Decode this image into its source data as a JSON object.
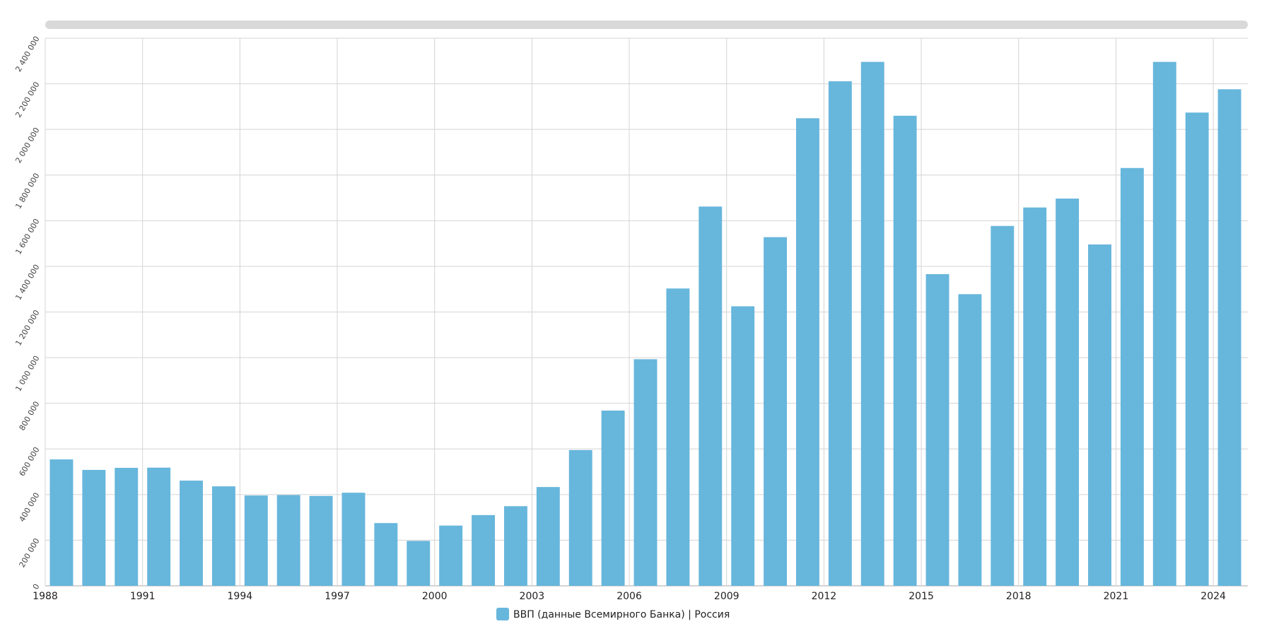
{
  "chart_data": {
    "type": "bar",
    "title": "",
    "xlabel": "",
    "ylabel": "",
    "categories": [
      1988,
      1989,
      1990,
      1991,
      1992,
      1993,
      1994,
      1995,
      1996,
      1997,
      1998,
      1999,
      2000,
      2001,
      2002,
      2003,
      2004,
      2005,
      2006,
      2007,
      2008,
      2009,
      2010,
      2011,
      2012,
      2013,
      2014,
      2015,
      2016,
      2017,
      2018,
      2019,
      2020,
      2021,
      2022,
      2023,
      2024
    ],
    "series": [
      {
        "name": "ВВП (данные Всемирного Банка) | Россия",
        "color": "#67b6dc",
        "values": [
          554000,
          508000,
          517000,
          518000,
          461000,
          436000,
          396000,
          398000,
          394000,
          408000,
          275000,
          197000,
          264000,
          310000,
          349000,
          433000,
          595000,
          768000,
          993000,
          1303000,
          1662000,
          1225000,
          1528000,
          2049000,
          2211000,
          2296000,
          2060000,
          1366000,
          1278000,
          1577000,
          1658000,
          1697000,
          1496000,
          1831000,
          2296000,
          2074000,
          2176000
        ]
      }
    ],
    "ylim": [
      0,
      2400000
    ],
    "yticks": [
      0,
      200000,
      400000,
      600000,
      800000,
      1000000,
      1200000,
      1400000,
      1600000,
      1800000,
      2000000,
      2200000,
      2400000
    ],
    "ytick_labels": [
      "0",
      "200 000",
      "400 000",
      "600 000",
      "800 000",
      "1 000 000",
      "1 200 000",
      "1 400 000",
      "1 600 000",
      "1 800 000",
      "2 000 000",
      "2 200 000",
      "2 400 000"
    ],
    "xtick_labels": [
      "1988",
      "1991",
      "1994",
      "1997",
      "2000",
      "2003",
      "2006",
      "2009",
      "2012",
      "2015",
      "2018",
      "2021",
      "2024"
    ],
    "grid": true,
    "legend_placement": "bottom-center",
    "scrollbar_color": "#d9d9d9"
  }
}
